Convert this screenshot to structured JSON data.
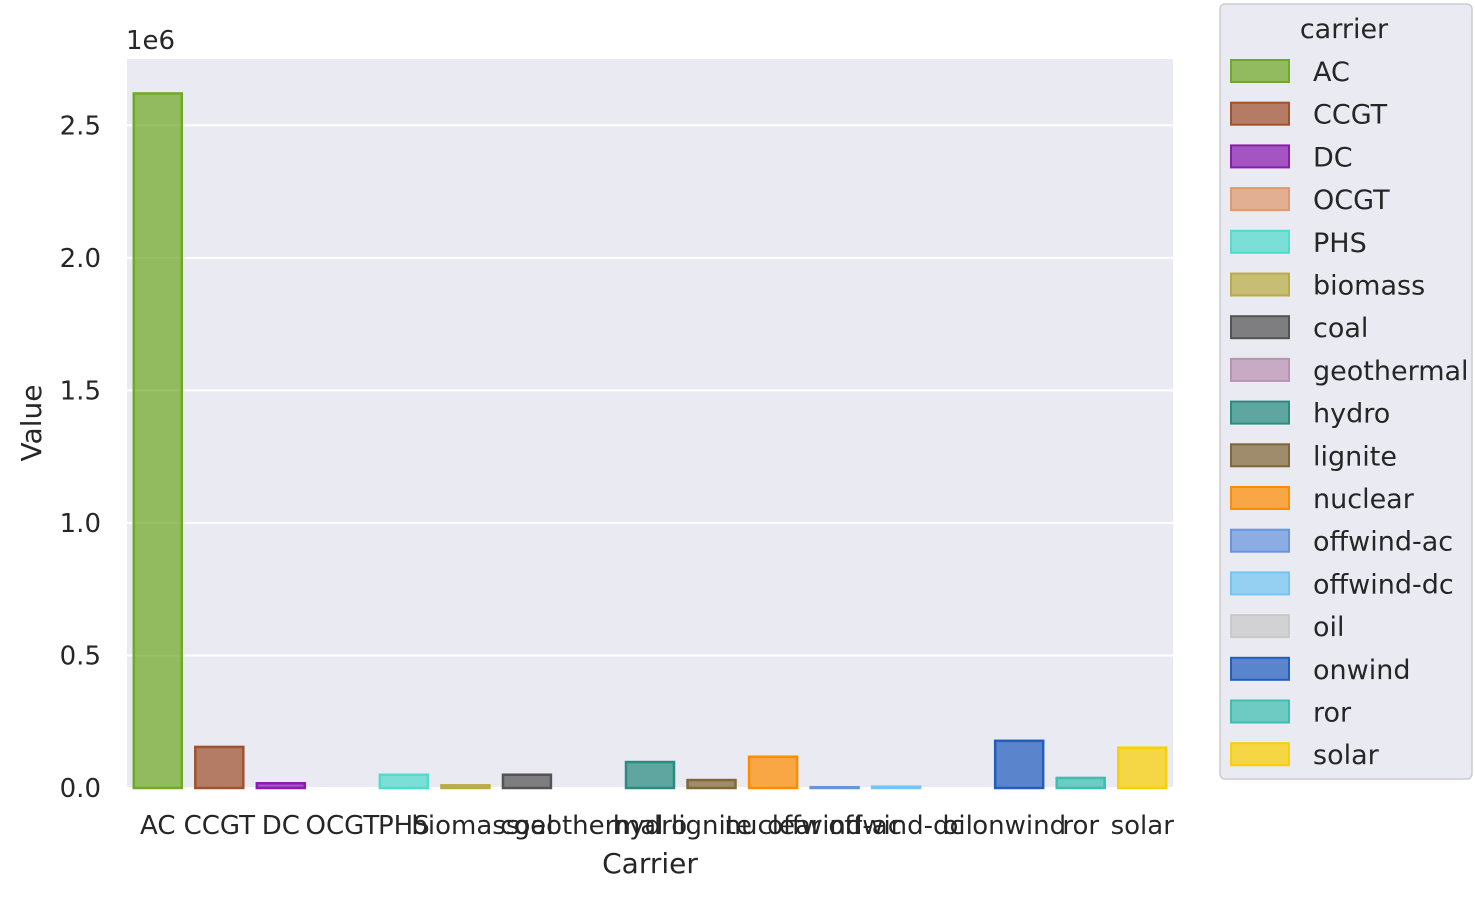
{
  "chart_data": {
    "type": "bar",
    "categories": [
      "AC",
      "CCGT",
      "DC",
      "OCGT",
      "PHS",
      "biomass",
      "coal",
      "geothermal",
      "hydro",
      "lignite",
      "nuclear",
      "offwind-ac",
      "offwind-dc",
      "oil",
      "onwind",
      "ror",
      "solar"
    ],
    "values": [
      2620000,
      155000,
      18000,
      0,
      50000,
      10000,
      50000,
      0,
      98000,
      30000,
      118000,
      3000,
      5000,
      0,
      178000,
      38000,
      152000
    ],
    "xlabel": "Carrier",
    "ylabel": "Value",
    "offset_label": "1e6",
    "ylim": [
      0,
      2750000
    ],
    "yticks": [
      0,
      500000,
      1000000,
      1500000,
      2000000,
      2500000
    ],
    "ytick_labels": [
      "0.0",
      "0.5",
      "1.0",
      "1.5",
      "2.0",
      "2.5"
    ],
    "grid": true,
    "legend": {
      "title": "carrier",
      "placement": "outside-right"
    },
    "colors": {
      "AC": "#70a925",
      "CCGT": "#a0522d",
      "DC": "#8a1caf",
      "OCGT": "#e0986c",
      "PHS": "#51dbcc",
      "biomass": "#baac44",
      "coal": "#545454",
      "geothermal": "#ba91b1",
      "hydro": "#298c81",
      "lignite": "#826837",
      "nuclear": "#ff8c00",
      "offwind-ac": "#6895dd",
      "offwind-dc": "#74c6f2",
      "oil": "#c9c9c9",
      "onwind": "#235ebc",
      "ror": "#3dbfb0",
      "solar": "#f9d002"
    }
  }
}
